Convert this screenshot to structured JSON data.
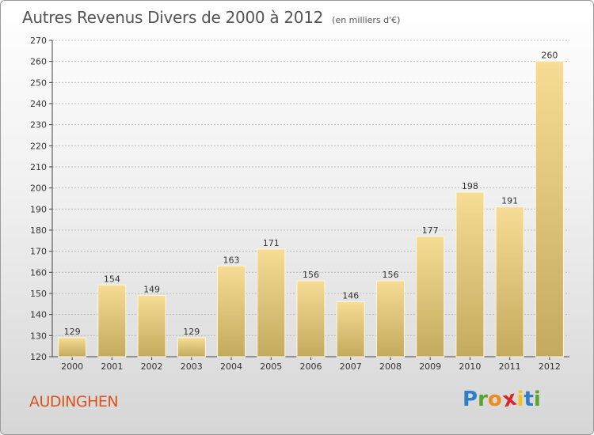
{
  "header": {
    "title": "Autres Revenus Divers de 2000 à 2012",
    "unit": "(en milliers d'€)"
  },
  "footer": {
    "city": "AUDINGHEN",
    "logo_letters": [
      "P",
      "r",
      "o",
      "x",
      "i",
      "t",
      "i"
    ],
    "logo_colors": [
      "#2f7fc6",
      "#5aa331",
      "#f08a1e",
      "#d8262d",
      "#f2c318",
      "#2f7fc6",
      "#5aa331"
    ]
  },
  "colors": {
    "bar_top": "#f6dc94",
    "bar_bottom": "#c4aa5e",
    "grid": "#bdbdbd",
    "city": "#d9541e"
  },
  "chart_data": {
    "type": "bar",
    "title": "Autres Revenus Divers de 2000 à 2012",
    "subtitle": "(en milliers d'€)",
    "categories": [
      "2000",
      "2001",
      "2002",
      "2003",
      "2004",
      "2005",
      "2006",
      "2007",
      "2008",
      "2009",
      "2010",
      "2011",
      "2012"
    ],
    "values": [
      129,
      154,
      149,
      129,
      163,
      171,
      156,
      146,
      156,
      177,
      198,
      191,
      260
    ],
    "ylim": [
      120,
      270
    ],
    "yticks": [
      120,
      130,
      140,
      150,
      160,
      170,
      180,
      190,
      200,
      210,
      220,
      230,
      240,
      250,
      260,
      270
    ],
    "grid": true,
    "data_labels": true
  }
}
